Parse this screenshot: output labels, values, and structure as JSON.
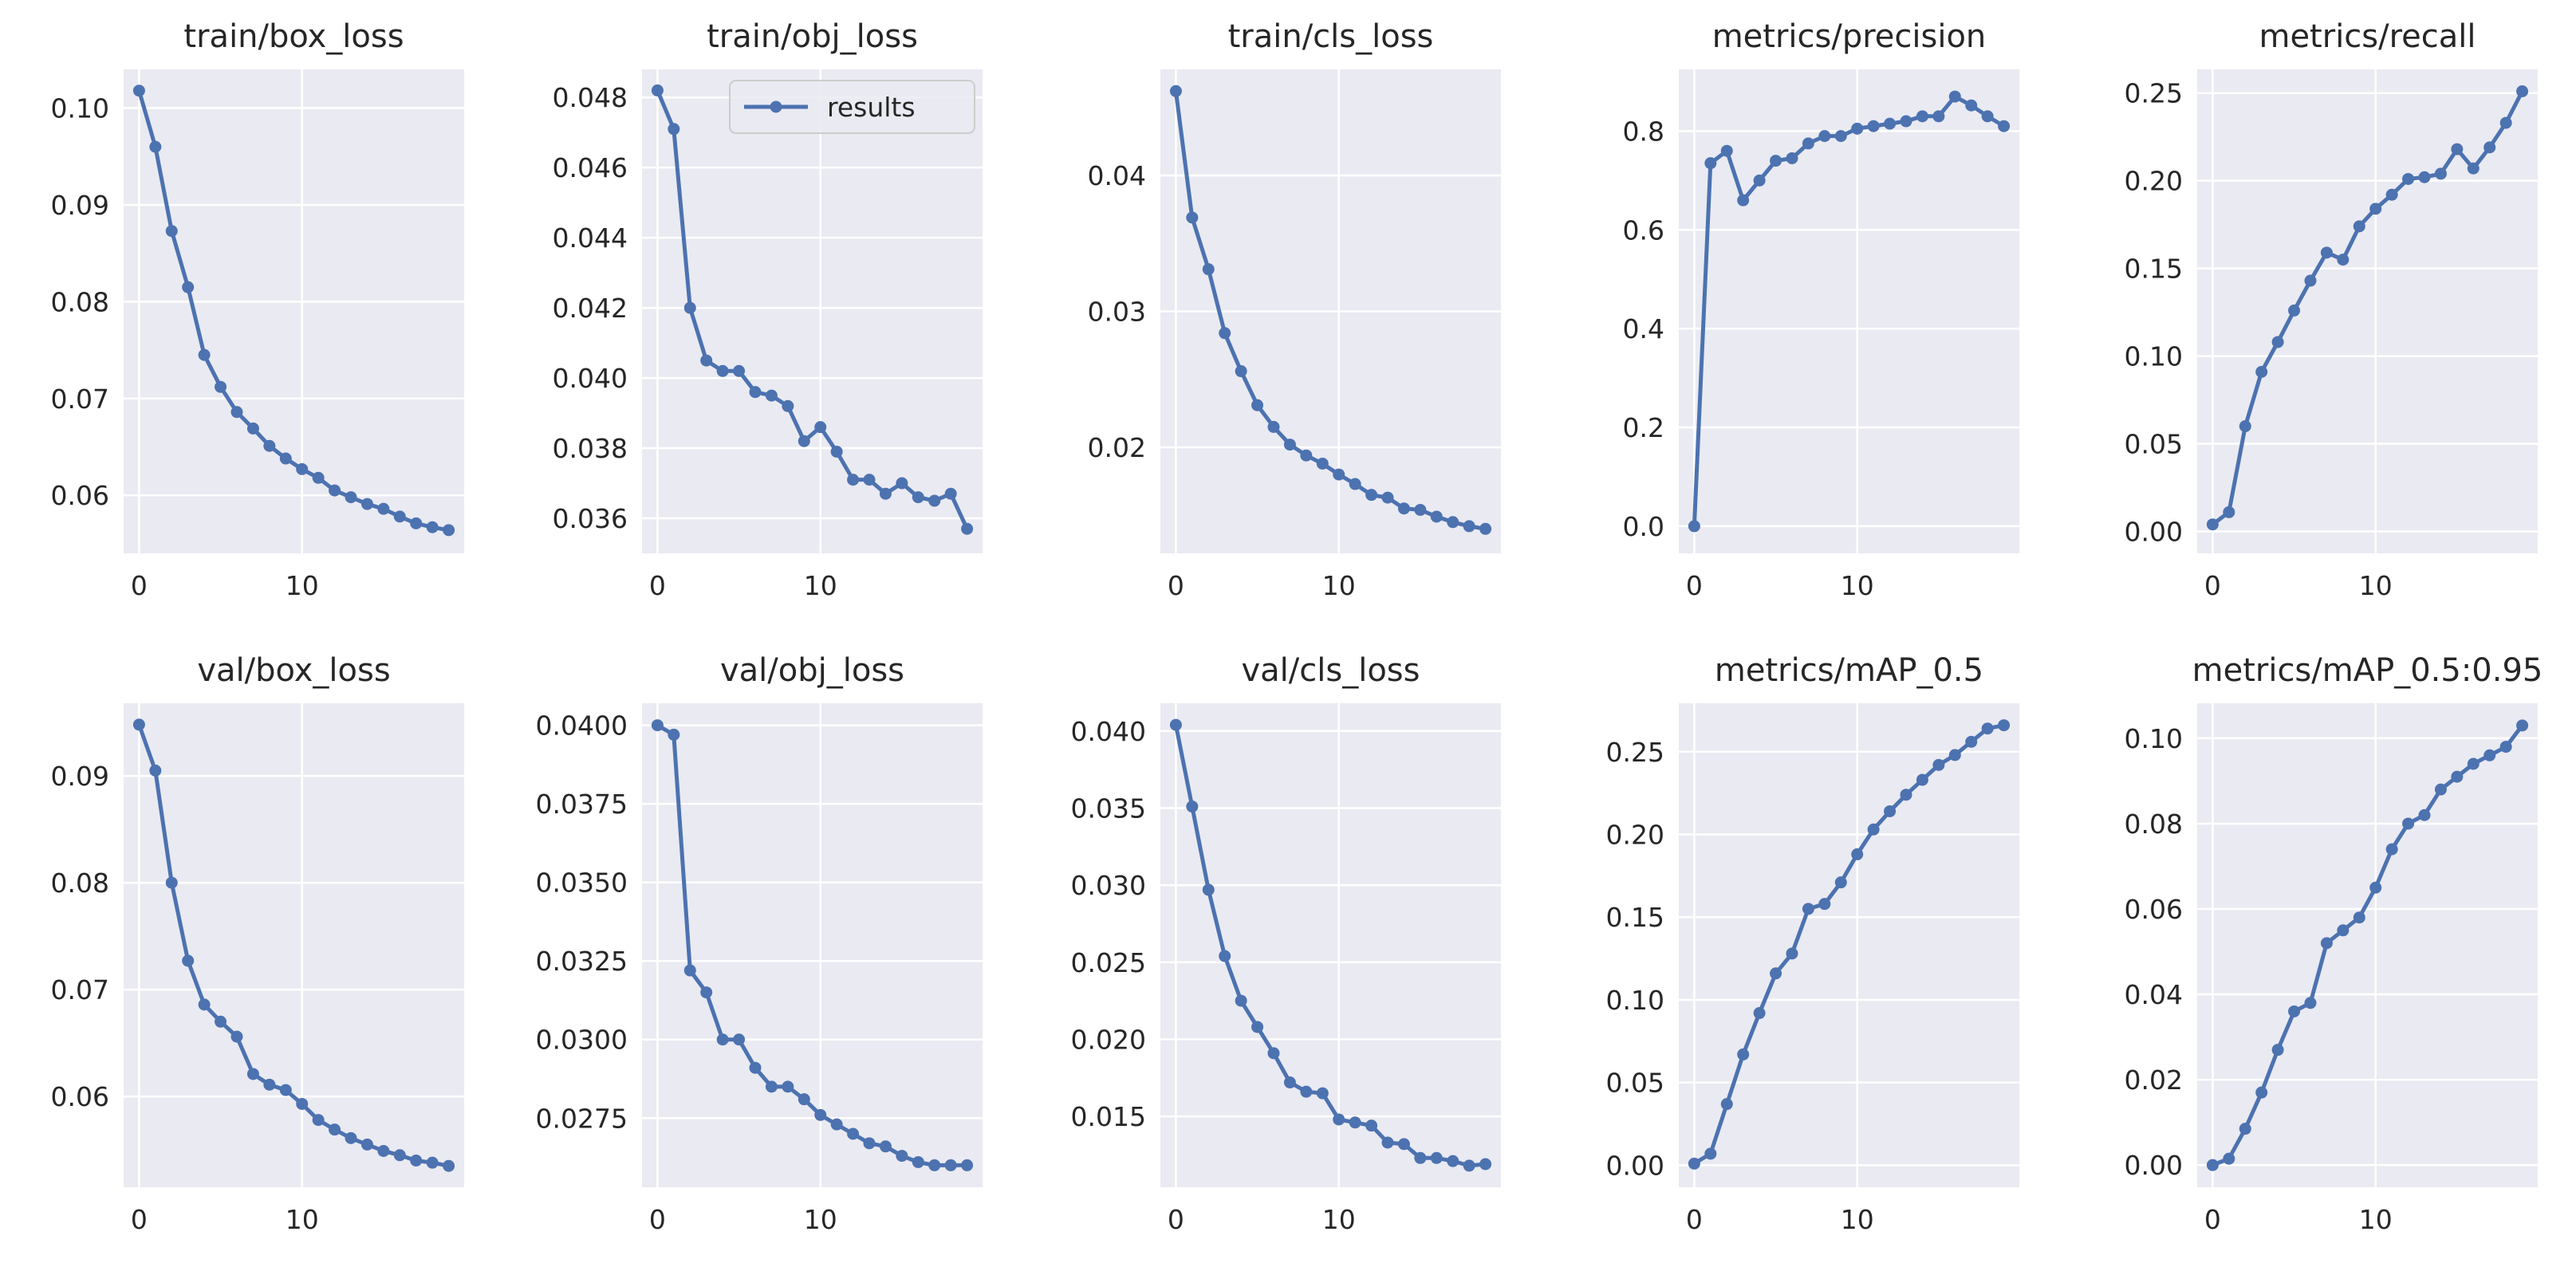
{
  "chart_data": [
    {
      "type": "line",
      "title": "train/box_loss",
      "series": [
        {
          "name": "results",
          "values": [
            0.1018,
            0.096,
            0.0873,
            0.0815,
            0.0745,
            0.0712,
            0.0686,
            0.0669,
            0.0651,
            0.0638,
            0.0627,
            0.0618,
            0.0605,
            0.0598,
            0.0591,
            0.0586,
            0.0578,
            0.0571,
            0.0567,
            0.0564
          ]
        }
      ],
      "x": [
        0,
        1,
        2,
        3,
        4,
        5,
        6,
        7,
        8,
        9,
        10,
        11,
        12,
        13,
        14,
        15,
        16,
        17,
        18,
        19
      ],
      "xlim": [
        -0.95,
        19.95
      ],
      "xticks": [
        0,
        10
      ],
      "xtick_labels": [
        "0",
        "10"
      ],
      "ylim": [
        0.054,
        0.104
      ],
      "yticks": [
        0.06,
        0.07,
        0.08,
        0.09,
        0.1
      ],
      "ytick_labels": [
        "0.06",
        "0.07",
        "0.08",
        "0.09",
        "0.10"
      ]
    },
    {
      "type": "line",
      "title": "train/obj_loss",
      "legend": "results",
      "legend_position": "top-right",
      "series": [
        {
          "name": "results",
          "values": [
            0.0482,
            0.0471,
            0.042,
            0.0405,
            0.0402,
            0.0402,
            0.0396,
            0.0395,
            0.0392,
            0.0382,
            0.0386,
            0.0379,
            0.0371,
            0.0371,
            0.0367,
            0.037,
            0.0366,
            0.0365,
            0.0367,
            0.0357
          ]
        }
      ],
      "x": [
        0,
        1,
        2,
        3,
        4,
        5,
        6,
        7,
        8,
        9,
        10,
        11,
        12,
        13,
        14,
        15,
        16,
        17,
        18,
        19
      ],
      "xlim": [
        -0.95,
        19.95
      ],
      "xticks": [
        0,
        10
      ],
      "xtick_labels": [
        "0",
        "10"
      ],
      "ylim": [
        0.035,
        0.0488
      ],
      "yticks": [
        0.036,
        0.038,
        0.04,
        0.042,
        0.044,
        0.046,
        0.048
      ],
      "ytick_labels": [
        "0.036",
        "0.038",
        "0.040",
        "0.042",
        "0.044",
        "0.046",
        "0.048"
      ]
    },
    {
      "type": "line",
      "title": "train/cls_loss",
      "series": [
        {
          "name": "results",
          "values": [
            0.0462,
            0.0369,
            0.0331,
            0.0284,
            0.0256,
            0.0231,
            0.0215,
            0.0202,
            0.0194,
            0.0188,
            0.018,
            0.0173,
            0.0165,
            0.0163,
            0.0155,
            0.0154,
            0.0149,
            0.0145,
            0.0142,
            0.014
          ]
        }
      ],
      "x": [
        0,
        1,
        2,
        3,
        4,
        5,
        6,
        7,
        8,
        9,
        10,
        11,
        12,
        13,
        14,
        15,
        16,
        17,
        18,
        19
      ],
      "xlim": [
        -0.95,
        19.95
      ],
      "xticks": [
        0,
        10
      ],
      "xtick_labels": [
        "0",
        "10"
      ],
      "ylim": [
        0.0122,
        0.0478
      ],
      "yticks": [
        0.02,
        0.03,
        0.04
      ],
      "ytick_labels": [
        "0.02",
        "0.03",
        "0.04"
      ]
    },
    {
      "type": "line",
      "title": "metrics/precision",
      "series": [
        {
          "name": "results",
          "values": [
            0.0,
            0.735,
            0.76,
            0.66,
            0.7,
            0.74,
            0.745,
            0.775,
            0.79,
            0.79,
            0.805,
            0.81,
            0.815,
            0.82,
            0.83,
            0.83,
            0.87,
            0.852,
            0.83,
            0.81
          ]
        }
      ],
      "x": [
        0,
        1,
        2,
        3,
        4,
        5,
        6,
        7,
        8,
        9,
        10,
        11,
        12,
        13,
        14,
        15,
        16,
        17,
        18,
        19
      ],
      "xlim": [
        -0.95,
        19.95
      ],
      "xticks": [
        0,
        10
      ],
      "xtick_labels": [
        "0",
        "10"
      ],
      "ylim": [
        -0.055,
        0.925
      ],
      "yticks": [
        0.0,
        0.2,
        0.4,
        0.6,
        0.8
      ],
      "ytick_labels": [
        "0.0",
        "0.2",
        "0.4",
        "0.6",
        "0.8"
      ]
    },
    {
      "type": "line",
      "title": "metrics/recall",
      "series": [
        {
          "name": "results",
          "values": [
            0.004,
            0.011,
            0.06,
            0.091,
            0.108,
            0.126,
            0.143,
            0.159,
            0.155,
            0.174,
            0.184,
            0.192,
            0.201,
            0.202,
            0.204,
            0.218,
            0.207,
            0.219,
            0.233,
            0.251
          ]
        }
      ],
      "x": [
        0,
        1,
        2,
        3,
        4,
        5,
        6,
        7,
        8,
        9,
        10,
        11,
        12,
        13,
        14,
        15,
        16,
        17,
        18,
        19
      ],
      "xlim": [
        -0.95,
        19.95
      ],
      "xticks": [
        0,
        10
      ],
      "xtick_labels": [
        "0",
        "10"
      ],
      "ylim": [
        -0.0125,
        0.2635
      ],
      "yticks": [
        0.0,
        0.05,
        0.1,
        0.15,
        0.2,
        0.25
      ],
      "ytick_labels": [
        "0.00",
        "0.05",
        "0.10",
        "0.15",
        "0.20",
        "0.25"
      ]
    },
    {
      "type": "line",
      "title": "val/box_loss",
      "series": [
        {
          "name": "results",
          "values": [
            0.0948,
            0.0905,
            0.08,
            0.0727,
            0.0686,
            0.067,
            0.0656,
            0.0621,
            0.0611,
            0.0606,
            0.0593,
            0.0578,
            0.0569,
            0.0561,
            0.0555,
            0.0549,
            0.0545,
            0.054,
            0.0538,
            0.0535
          ]
        }
      ],
      "x": [
        0,
        1,
        2,
        3,
        4,
        5,
        6,
        7,
        8,
        9,
        10,
        11,
        12,
        13,
        14,
        15,
        16,
        17,
        18,
        19
      ],
      "xlim": [
        -0.95,
        19.95
      ],
      "xticks": [
        0,
        10
      ],
      "xtick_labels": [
        "0",
        "10"
      ],
      "ylim": [
        0.0515,
        0.0968
      ],
      "yticks": [
        0.06,
        0.07,
        0.08,
        0.09
      ],
      "ytick_labels": [
        "0.06",
        "0.07",
        "0.08",
        "0.09"
      ]
    },
    {
      "type": "line",
      "title": "val/obj_loss",
      "series": [
        {
          "name": "results",
          "values": [
            0.04,
            0.0397,
            0.0322,
            0.0315,
            0.03,
            0.03,
            0.0291,
            0.0285,
            0.0285,
            0.0281,
            0.0276,
            0.0273,
            0.027,
            0.0267,
            0.0266,
            0.0263,
            0.0261,
            0.026,
            0.026,
            0.026
          ]
        }
      ],
      "x": [
        0,
        1,
        2,
        3,
        4,
        5,
        6,
        7,
        8,
        9,
        10,
        11,
        12,
        13,
        14,
        15,
        16,
        17,
        18,
        19
      ],
      "xlim": [
        -0.95,
        19.95
      ],
      "xticks": [
        0,
        10
      ],
      "xtick_labels": [
        "0",
        "10"
      ],
      "ylim": [
        0.0253,
        0.0407
      ],
      "yticks": [
        0.0275,
        0.03,
        0.0325,
        0.035,
        0.0375,
        0.04
      ],
      "ytick_labels": [
        "0.0275",
        "0.0300",
        "0.0325",
        "0.0350",
        "0.0375",
        "0.0400"
      ]
    },
    {
      "type": "line",
      "title": "val/cls_loss",
      "series": [
        {
          "name": "results",
          "values": [
            0.0404,
            0.0351,
            0.0297,
            0.0254,
            0.0225,
            0.0208,
            0.0191,
            0.0172,
            0.0166,
            0.0165,
            0.0148,
            0.0146,
            0.0144,
            0.0133,
            0.0132,
            0.0123,
            0.0123,
            0.0121,
            0.0118,
            0.0119
          ]
        }
      ],
      "x": [
        0,
        1,
        2,
        3,
        4,
        5,
        6,
        7,
        8,
        9,
        10,
        11,
        12,
        13,
        14,
        15,
        16,
        17,
        18,
        19
      ],
      "xlim": [
        -0.95,
        19.95
      ],
      "xticks": [
        0,
        10
      ],
      "xtick_labels": [
        "0",
        "10"
      ],
      "ylim": [
        0.0104,
        0.0418
      ],
      "yticks": [
        0.015,
        0.02,
        0.025,
        0.03,
        0.035,
        0.04
      ],
      "ytick_labels": [
        "0.015",
        "0.020",
        "0.025",
        "0.030",
        "0.035",
        "0.040"
      ]
    },
    {
      "type": "line",
      "title": "metrics/mAP_0.5",
      "series": [
        {
          "name": "results",
          "values": [
            0.001,
            0.007,
            0.037,
            0.067,
            0.092,
            0.116,
            0.128,
            0.155,
            0.158,
            0.171,
            0.188,
            0.203,
            0.214,
            0.224,
            0.233,
            0.242,
            0.248,
            0.256,
            0.264,
            0.266
          ]
        }
      ],
      "x": [
        0,
        1,
        2,
        3,
        4,
        5,
        6,
        7,
        8,
        9,
        10,
        11,
        12,
        13,
        14,
        15,
        16,
        17,
        18,
        19
      ],
      "xlim": [
        -0.95,
        19.95
      ],
      "xticks": [
        0,
        10
      ],
      "xtick_labels": [
        "0",
        "10"
      ],
      "ylim": [
        -0.0133,
        0.2793
      ],
      "yticks": [
        0.0,
        0.05,
        0.1,
        0.15,
        0.2,
        0.25
      ],
      "ytick_labels": [
        "0.00",
        "0.05",
        "0.10",
        "0.15",
        "0.20",
        "0.25"
      ]
    },
    {
      "type": "line",
      "title": "metrics/mAP_0.5:0.95",
      "series": [
        {
          "name": "results",
          "values": [
            0.0,
            0.0015,
            0.0085,
            0.017,
            0.027,
            0.036,
            0.038,
            0.052,
            0.055,
            0.058,
            0.065,
            0.074,
            0.08,
            0.082,
            0.088,
            0.091,
            0.094,
            0.096,
            0.098,
            0.103
          ]
        }
      ],
      "x": [
        0,
        1,
        2,
        3,
        4,
        5,
        6,
        7,
        8,
        9,
        10,
        11,
        12,
        13,
        14,
        15,
        16,
        17,
        18,
        19
      ],
      "xlim": [
        -0.95,
        19.95
      ],
      "xticks": [
        0,
        10
      ],
      "xtick_labels": [
        "0",
        "10"
      ],
      "ylim": [
        -0.0052,
        0.1082
      ],
      "yticks": [
        0.0,
        0.02,
        0.04,
        0.06,
        0.08,
        0.1
      ],
      "ytick_labels": [
        "0.00",
        "0.02",
        "0.04",
        "0.06",
        "0.08",
        "0.10"
      ]
    }
  ],
  "colors": {
    "line": "#4c72b0",
    "plot_background": "#eaeaf2",
    "grid": "#ffffff",
    "text": "#262626"
  }
}
